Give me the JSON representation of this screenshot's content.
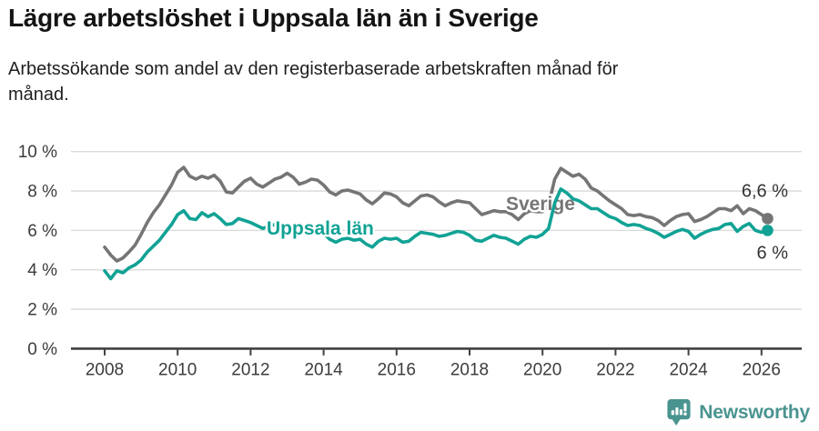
{
  "header": {
    "title": "Lägre arbetslöshet i Uppsala län än i Sverige",
    "subtitle_lines": [
      "Arbetssökande som andel av den registerbaserade arbetskraften månad för",
      "månad."
    ]
  },
  "chart_data": {
    "type": "line",
    "title": "Lägre arbetslöshet i Uppsala län än i Sverige",
    "xlabel": "",
    "ylabel": "",
    "ylim": [
      0,
      10.5
    ],
    "grid": true,
    "x_start": 2008.0,
    "x_step_years": 0.1666667,
    "x_ticks": [
      {
        "value": 2008,
        "label": "2008"
      },
      {
        "value": 2010,
        "label": "2010"
      },
      {
        "value": 2012,
        "label": "2012"
      },
      {
        "value": 2014,
        "label": "2014"
      },
      {
        "value": 2016,
        "label": "2016"
      },
      {
        "value": 2018,
        "label": "2018"
      },
      {
        "value": 2020,
        "label": "2020"
      },
      {
        "value": 2022,
        "label": "2022"
      },
      {
        "value": 2024,
        "label": "2024"
      },
      {
        "value": 2026,
        "label": "2026"
      }
    ],
    "y_ticks": [
      {
        "value": 0,
        "label": "0 %"
      },
      {
        "value": 2,
        "label": "2 %"
      },
      {
        "value": 4,
        "label": "4 %"
      },
      {
        "value": 6,
        "label": "6 %"
      },
      {
        "value": 8,
        "label": "8 %"
      },
      {
        "value": 10,
        "label": "10 %"
      }
    ],
    "series": [
      {
        "name": "Sverige",
        "color": "#757575",
        "end_label": "6,6 %",
        "values": [
          5.15,
          4.75,
          4.45,
          4.6,
          4.9,
          5.25,
          5.8,
          6.4,
          6.9,
          7.3,
          7.8,
          8.3,
          8.95,
          9.2,
          8.75,
          8.6,
          8.75,
          8.65,
          8.8,
          8.5,
          7.95,
          7.9,
          8.2,
          8.5,
          8.65,
          8.35,
          8.2,
          8.4,
          8.6,
          8.7,
          8.9,
          8.7,
          8.35,
          8.45,
          8.6,
          8.55,
          8.3,
          7.95,
          7.8,
          8.0,
          8.05,
          7.95,
          7.85,
          7.55,
          7.35,
          7.6,
          7.9,
          7.85,
          7.7,
          7.4,
          7.25,
          7.5,
          7.75,
          7.8,
          7.7,
          7.45,
          7.25,
          7.4,
          7.5,
          7.45,
          7.4,
          7.1,
          6.8,
          6.9,
          7.0,
          6.95,
          6.95,
          6.8,
          6.55,
          6.85,
          7.0,
          6.95,
          6.95,
          7.3,
          8.6,
          9.15,
          8.95,
          8.75,
          8.85,
          8.6,
          8.15,
          8.0,
          7.75,
          7.5,
          7.3,
          7.1,
          6.8,
          6.75,
          6.8,
          6.7,
          6.65,
          6.5,
          6.25,
          6.5,
          6.7,
          6.8,
          6.85,
          6.45,
          6.55,
          6.7,
          6.9,
          7.1,
          7.1,
          7.0,
          7.25,
          6.85,
          7.1,
          7.0,
          6.8,
          6.6
        ]
      },
      {
        "name": "Uppsala län",
        "color": "#11a295",
        "end_label": "6 %",
        "values": [
          3.95,
          3.55,
          3.95,
          3.85,
          4.1,
          4.25,
          4.5,
          4.9,
          5.2,
          5.5,
          5.9,
          6.3,
          6.8,
          7.0,
          6.6,
          6.55,
          6.9,
          6.7,
          6.85,
          6.6,
          6.3,
          6.35,
          6.6,
          6.5,
          6.4,
          6.25,
          6.1,
          6.2,
          6.3,
          6.25,
          6.3,
          6.1,
          5.9,
          6.0,
          6.1,
          6.0,
          5.85,
          5.55,
          5.4,
          5.55,
          5.6,
          5.5,
          5.55,
          5.3,
          5.15,
          5.45,
          5.6,
          5.55,
          5.6,
          5.4,
          5.45,
          5.7,
          5.9,
          5.85,
          5.8,
          5.7,
          5.75,
          5.85,
          5.95,
          5.9,
          5.75,
          5.5,
          5.45,
          5.6,
          5.75,
          5.65,
          5.6,
          5.45,
          5.3,
          5.55,
          5.7,
          5.65,
          5.8,
          6.1,
          7.4,
          8.1,
          7.9,
          7.6,
          7.5,
          7.3,
          7.1,
          7.1,
          6.9,
          6.7,
          6.6,
          6.4,
          6.25,
          6.3,
          6.25,
          6.1,
          6.0,
          5.85,
          5.65,
          5.8,
          5.95,
          6.05,
          5.95,
          5.6,
          5.8,
          5.95,
          6.05,
          6.1,
          6.3,
          6.35,
          5.95,
          6.2,
          6.35,
          6.0,
          5.9,
          6.0
        ]
      }
    ],
    "legend_position": "inline-labels",
    "colors": {
      "grid": "#d9d9d9",
      "axis": "#414141",
      "tick_text": "#3c3c3c",
      "end_label_text": "#333333"
    }
  },
  "footer": {
    "brand": "Newsworthy",
    "brand_color": "#4a9490"
  }
}
